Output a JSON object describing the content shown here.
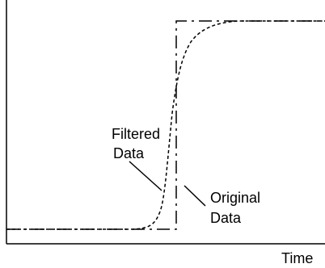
{
  "figure": {
    "line_color": "#000000",
    "background": "#ffffff",
    "x_axis_label": "Time",
    "filtered_label": {
      "line1": "Filtered",
      "line2": "Data"
    },
    "original_label": {
      "line1": "Original",
      "line2": "Data"
    },
    "original_style": "long-dash",
    "filtered_style": "short-dash"
  }
}
